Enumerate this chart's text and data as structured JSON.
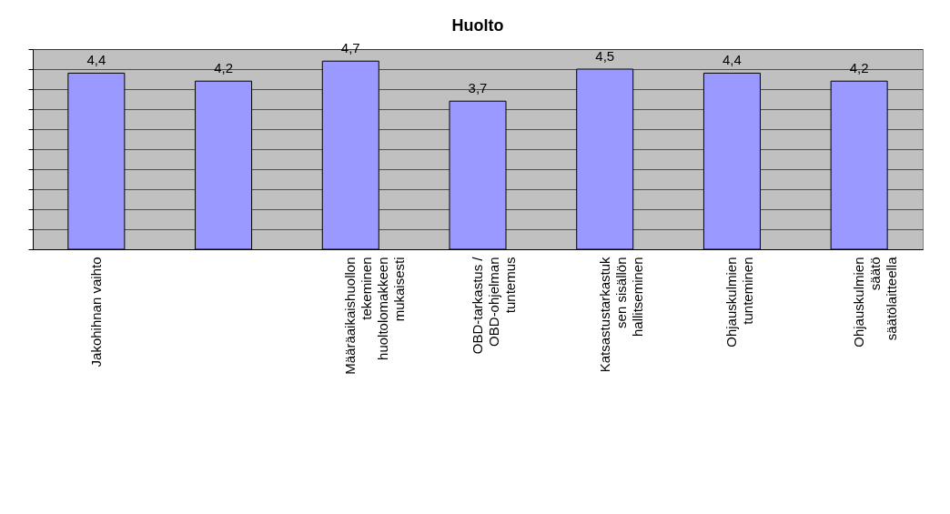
{
  "chart_data": {
    "type": "bar",
    "title": "Huolto",
    "categories": [
      "Jakohihnan vaihto",
      null,
      "Määräaikaishuollon tekeminen huoltolomakkeen mukaisesti",
      "OBD-tarkastus / OBD-ohjelman tuntemus",
      "Katsastustarkastuksen sisällön hallitseminen",
      "Ohjauskulmien tunteminen",
      "Ohjauskulmien säätö säätölaitteella"
    ],
    "values": [
      4.4,
      4.2,
      4.7,
      3.7,
      4.5,
      4.4,
      4.2
    ],
    "value_labels": [
      "4,4",
      "4,2",
      "4,7",
      "3,7",
      "4,5",
      "4,4",
      "4,2"
    ],
    "color": "#9999ff",
    "tick_labels": "x",
    "grid": "y",
    "legend": false
  }
}
